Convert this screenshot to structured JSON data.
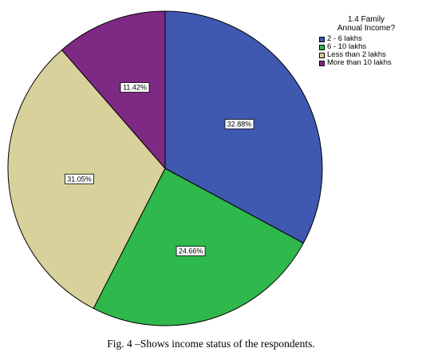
{
  "chart_data": {
    "type": "pie",
    "legend_title": [
      "1.4 Family",
      "Annual Income?"
    ],
    "legend_position": "top-right",
    "slices": [
      {
        "name": "2 - 6 lakhs",
        "value": 32.88,
        "label": "32.88%",
        "color": "#3f58b0"
      },
      {
        "name": "6 - 10 lakhs",
        "value": 24.66,
        "label": "24.66%",
        "color": "#2fb84b"
      },
      {
        "name": "Less than 2 lakhs",
        "value": 31.05,
        "label": "31.05%",
        "color": "#d8d19b"
      },
      {
        "name": "More than 10 lakhs",
        "value": 11.42,
        "label": "11.42%",
        "color": "#7e2a84"
      }
    ],
    "start_angle": "12 o'clock",
    "direction": "clockwise"
  },
  "caption": "Fig. 4 –Shows income status of the respondents."
}
